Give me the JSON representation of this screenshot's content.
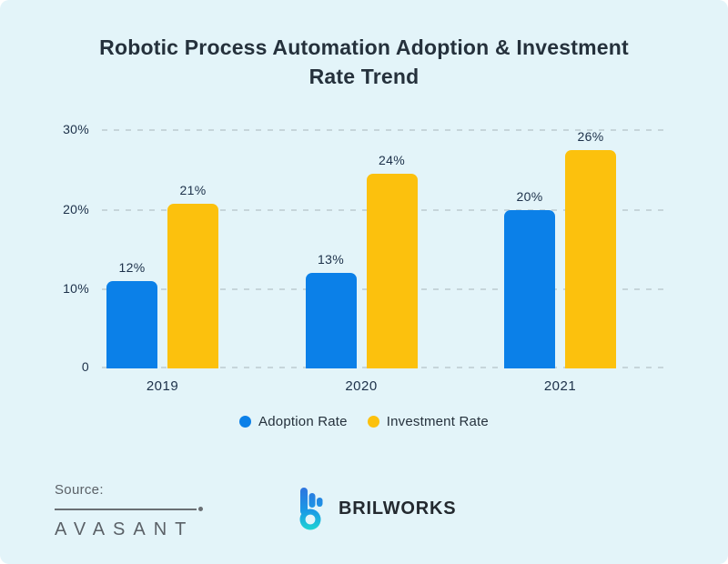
{
  "page": {
    "background": "#e3f4f9"
  },
  "title": "Robotic Process Automation Adoption & Investment Rate Trend",
  "chart_data": {
    "type": "bar",
    "title": "Robotic Process Automation Adoption & Investment Rate Trend",
    "categories": [
      "2019",
      "2020",
      "2021"
    ],
    "series": [
      {
        "name": "Adoption Rate",
        "color": "#0b80e8",
        "values": [
          12,
          13,
          20
        ],
        "labels": [
          "12%",
          "13%",
          "20%"
        ],
        "drawn_pct": [
          11,
          12,
          19.8
        ]
      },
      {
        "name": "Investment Rate",
        "color": "#fcc10d",
        "values": [
          21,
          24,
          26
        ],
        "labels": [
          "21%",
          "24%",
          "26%"
        ],
        "drawn_pct": [
          20.7,
          24.4,
          27.4
        ]
      }
    ],
    "xlabel": "",
    "ylabel": "",
    "ylim": [
      0,
      30
    ],
    "yticks": [
      "30%",
      "20%",
      "10%",
      "0"
    ],
    "grid": "horizontal-dashed",
    "legend_position": "bottom"
  },
  "footer": {
    "source_label": "Source:",
    "source_name": "AVASANT",
    "brand_name": "BRILWORKS",
    "brand_icon": "brilworks-b-logo",
    "brand_gradient_top": "#2e74df",
    "brand_gradient_bottom": "#1fd6d2",
    "text_gray": "#5b6167"
  }
}
